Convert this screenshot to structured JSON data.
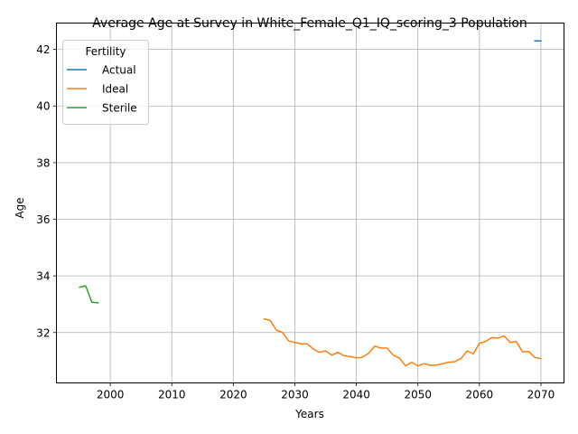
{
  "chart_data": {
    "type": "line",
    "title": "Average Age at Survey in White_Female_Q1_IQ_scoring_3 Population",
    "xlabel": "Years",
    "ylabel": "Age",
    "xlim": [
      1991.25,
      2073.75
    ],
    "ylim": [
      30.22,
      42.93
    ],
    "x_ticks": [
      2000,
      2010,
      2020,
      2030,
      2040,
      2050,
      2060,
      2070
    ],
    "y_ticks": [
      32,
      34,
      36,
      38,
      40,
      42
    ],
    "grid": true,
    "legend": {
      "title": "Fertility",
      "placement": "top-left"
    },
    "series": [
      {
        "name": "Actual",
        "color": "#1f77b4",
        "x": [
          2069,
          2070
        ],
        "y": [
          42.3,
          42.3
        ]
      },
      {
        "name": "Ideal",
        "color": "#ff7f0e",
        "x": [
          2025,
          2026,
          2027,
          2028,
          2029,
          2030,
          2031,
          2032,
          2033,
          2034,
          2035,
          2036,
          2037,
          2038,
          2039,
          2040,
          2041,
          2042,
          2043,
          2044,
          2045,
          2046,
          2047,
          2048,
          2049,
          2050,
          2051,
          2052,
          2053,
          2054,
          2055,
          2056,
          2057,
          2058,
          2059,
          2060,
          2061,
          2062,
          2063,
          2064,
          2065,
          2066,
          2067,
          2068,
          2069,
          2070
        ],
        "y": [
          32.48,
          32.43,
          32.08,
          32.0,
          31.7,
          31.65,
          31.6,
          31.6,
          31.42,
          31.3,
          31.35,
          31.2,
          31.3,
          31.18,
          31.15,
          31.1,
          31.13,
          31.27,
          31.52,
          31.45,
          31.45,
          31.2,
          31.1,
          30.82,
          30.95,
          30.82,
          30.9,
          30.84,
          30.85,
          30.9,
          30.95,
          30.97,
          31.08,
          31.35,
          31.25,
          31.62,
          31.68,
          31.82,
          31.8,
          31.88,
          31.65,
          31.68,
          31.32,
          31.33,
          31.12,
          31.08
        ]
      },
      {
        "name": "Sterile",
        "color": "#2ca02c",
        "x": [
          1995,
          1996,
          1997,
          1998
        ],
        "y": [
          33.6,
          33.65,
          33.07,
          33.05
        ]
      }
    ]
  }
}
